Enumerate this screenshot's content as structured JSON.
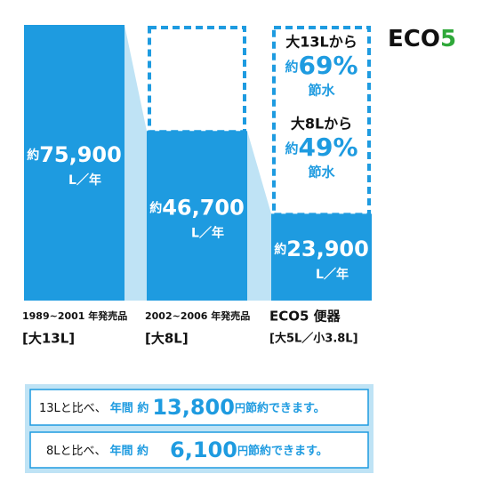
{
  "chart_data": {
    "type": "bar",
    "categories": [
      "1989~2001 年発売品",
      "2002~2006 年発売品",
      "ECO5 便器"
    ],
    "category_sublabels": [
      "[大13L]",
      "[大8L]",
      "[大5L／小3.8L]"
    ],
    "values": [
      75900,
      46700,
      23900
    ],
    "value_labels": [
      "75,900",
      "46,700",
      "23,900"
    ],
    "value_prefix": "約",
    "value_unit": "L／年",
    "color": "#1e9be0",
    "logo": {
      "text": "ECO",
      "accent": "5"
    },
    "savings": [
      {
        "from": "大13Lから",
        "prefix": "約",
        "value": 69,
        "value_label": "69%",
        "text": "節水"
      },
      {
        "from": "大8Lから",
        "prefix": "約",
        "value": 49,
        "value_label": "49%",
        "text": "節水"
      }
    ],
    "summary": [
      {
        "compare": "13Lと比べ、",
        "period": "年間 約",
        "value": 13800,
        "value_label": "13,800",
        "unit": "円",
        "tail": "節約できます。"
      },
      {
        "compare": "8Lと比べ、",
        "period": "年間 約",
        "value": 6100,
        "value_label": "6,100",
        "unit": "円",
        "tail": "節約できます。"
      }
    ]
  }
}
